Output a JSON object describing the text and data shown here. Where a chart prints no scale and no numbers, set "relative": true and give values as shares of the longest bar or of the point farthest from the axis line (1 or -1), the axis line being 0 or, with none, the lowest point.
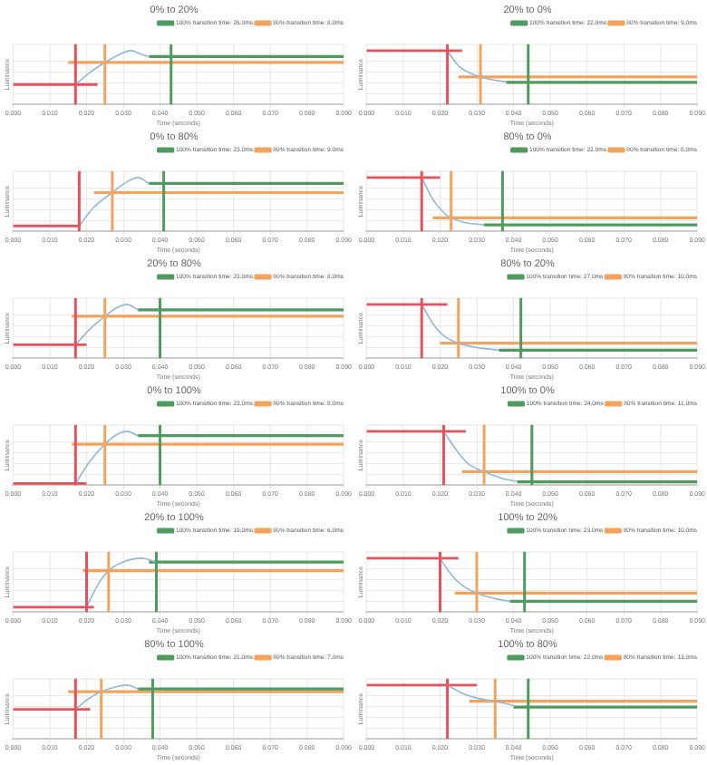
{
  "chart_data": [
    {
      "type": "line",
      "title": "0% to 20%",
      "xlabel": "Time (seconds)",
      "ylabel": "Luminance",
      "relative": true,
      "xlim": [
        0,
        0.09
      ],
      "xticks": [
        {
          "value": 0,
          "label": "0.000"
        },
        {
          "value": 0.01,
          "label": "0.010"
        },
        {
          "value": 0.02,
          "label": "0.020"
        },
        {
          "value": 0.03,
          "label": "0.030"
        },
        {
          "value": 0.04,
          "label": "0.040"
        },
        {
          "value": 0.05,
          "label": "0.050"
        },
        {
          "value": 0.06,
          "label": "0.060"
        },
        {
          "value": 0.07,
          "label": "0.070"
        },
        {
          "value": 0.08,
          "label": "0.080"
        },
        {
          "value": 0.09,
          "label": "0.090"
        }
      ],
      "grid": true,
      "legend": "top right",
      "tick_labels": "x",
      "marker": "none",
      "series": [
        {
          "color": "#8fb8de",
          "x": [
            0.017,
            0.021,
            0.025,
            0.029,
            0.032,
            0.035,
            0.037
          ],
          "values": [
            0.37,
            0.6,
            0.78,
            0.93,
            1,
            0.93,
            0.89
          ]
        },
        {
          "color": "#e8505b",
          "x": [
            0,
            0.023
          ],
          "values": [
            0.37,
            0.37
          ]
        },
        {
          "name": "100% transition time: 26.0ms",
          "color": "#4e9a5f",
          "x": [
            0.037,
            0.09
          ],
          "values": [
            0.89,
            0.89
          ]
        },
        {
          "name": "80% transition time: 8.0ms",
          "color": "#f5a35c",
          "x": [
            0.015,
            0.09
          ],
          "values": [
            0.78,
            0.78
          ]
        }
      ],
      "ref_lines": [
        {
          "axis": "x",
          "value": 0.017,
          "color": "#e8505b"
        },
        {
          "axis": "x",
          "value": 0.025,
          "color": "#f5a35c"
        },
        {
          "axis": "x",
          "value": 0.043,
          "color": "#4e9a5f"
        }
      ]
    },
    {
      "type": "line",
      "title": "20% to 0%",
      "xlabel": "Time (seconds)",
      "ylabel": "Luminance",
      "relative": true,
      "xlim": [
        0,
        0.09
      ],
      "xticks": [
        {
          "value": 0,
          "label": "0.000"
        },
        {
          "value": 0.01,
          "label": "0.010"
        },
        {
          "value": 0.02,
          "label": "0.020"
        },
        {
          "value": 0.03,
          "label": "0.030"
        },
        {
          "value": 0.04,
          "label": "0.040"
        },
        {
          "value": 0.05,
          "label": "0.050"
        },
        {
          "value": 0.06,
          "label": "0.060"
        },
        {
          "value": 0.07,
          "label": "0.070"
        },
        {
          "value": 0.08,
          "label": "0.080"
        },
        {
          "value": 0.09,
          "label": "0.090"
        }
      ],
      "grid": true,
      "legend": "top right",
      "tick_labels": "x",
      "marker": "none",
      "series": [
        {
          "color": "#8fb8de",
          "x": [
            0.022,
            0.025,
            0.028,
            0.031,
            0.035,
            0.038
          ],
          "values": [
            1,
            0.72,
            0.59,
            0.51,
            0.45,
            0.42
          ]
        },
        {
          "color": "#e8505b",
          "x": [
            0,
            0.026
          ],
          "values": [
            1,
            1
          ]
        },
        {
          "name": "100% transition time: 22.0ms",
          "color": "#4e9a5f",
          "x": [
            0.038,
            0.09
          ],
          "values": [
            0.41,
            0.41
          ]
        },
        {
          "name": "80% transition time: 9.0ms",
          "color": "#f5a35c",
          "x": [
            0.025,
            0.09
          ],
          "values": [
            0.51,
            0.51
          ]
        }
      ],
      "ref_lines": [
        {
          "axis": "x",
          "value": 0.022,
          "color": "#e8505b"
        },
        {
          "axis": "x",
          "value": 0.031,
          "color": "#f5a35c"
        },
        {
          "axis": "x",
          "value": 0.044,
          "color": "#4e9a5f"
        }
      ]
    },
    {
      "type": "line",
      "title": "0% to 80%",
      "xlabel": "Time (seconds)",
      "ylabel": "Luminance",
      "relative": true,
      "xlim": [
        0,
        0.09
      ],
      "xticks": [
        {
          "value": 0,
          "label": "0.000"
        },
        {
          "value": 0.01,
          "label": "0.010"
        },
        {
          "value": 0.02,
          "label": "0.020"
        },
        {
          "value": 0.03,
          "label": "0.030"
        },
        {
          "value": 0.04,
          "label": "0.040"
        },
        {
          "value": 0.05,
          "label": "0.050"
        },
        {
          "value": 0.06,
          "label": "0.060"
        },
        {
          "value": 0.07,
          "label": "0.070"
        },
        {
          "value": 0.08,
          "label": "0.080"
        },
        {
          "value": 0.09,
          "label": "0.090"
        }
      ],
      "grid": true,
      "legend": "top right",
      "tick_labels": "x",
      "marker": "none",
      "series": [
        {
          "color": "#8fb8de",
          "x": [
            0.018,
            0.022,
            0.027,
            0.031,
            0.034,
            0.037
          ],
          "values": [
            0.1,
            0.45,
            0.72,
            0.92,
            1,
            0.89
          ]
        },
        {
          "color": "#e8505b",
          "x": [
            0,
            0.018
          ],
          "values": [
            0.1,
            0.1
          ]
        },
        {
          "name": "100% transition time: 23.0ms",
          "color": "#4e9a5f",
          "x": [
            0.037,
            0.09
          ],
          "values": [
            0.89,
            0.89
          ]
        },
        {
          "name": "80% transition time: 9.0ms",
          "color": "#f5a35c",
          "x": [
            0.022,
            0.09
          ],
          "values": [
            0.72,
            0.72
          ]
        }
      ],
      "ref_lines": [
        {
          "axis": "x",
          "value": 0.018,
          "color": "#e8505b"
        },
        {
          "axis": "x",
          "value": 0.027,
          "color": "#f5a35c"
        },
        {
          "axis": "x",
          "value": 0.041,
          "color": "#4e9a5f"
        }
      ]
    },
    {
      "type": "line",
      "title": "80% to 0%",
      "xlabel": "Time (seconds)",
      "ylabel": "Luminance",
      "relative": true,
      "xlim": [
        0,
        0.09
      ],
      "xticks": [
        {
          "value": 0,
          "label": "0.000"
        },
        {
          "value": 0.01,
          "label": "0.010"
        },
        {
          "value": 0.02,
          "label": "0.020"
        },
        {
          "value": 0.03,
          "label": "0.030"
        },
        {
          "value": 0.04,
          "label": "0.040"
        },
        {
          "value": 0.05,
          "label": "0.050"
        },
        {
          "value": 0.06,
          "label": "0.060"
        },
        {
          "value": 0.07,
          "label": "0.070"
        },
        {
          "value": 0.08,
          "label": "0.080"
        },
        {
          "value": 0.09,
          "label": "0.090"
        }
      ],
      "grid": true,
      "legend": "top right",
      "tick_labels": "x",
      "marker": "none",
      "series": [
        {
          "color": "#8fb8de",
          "x": [
            0.015,
            0.018,
            0.021,
            0.023,
            0.027,
            0.032
          ],
          "values": [
            1,
            0.6,
            0.35,
            0.25,
            0.16,
            0.12
          ]
        },
        {
          "color": "#e8505b",
          "x": [
            0,
            0.02
          ],
          "values": [
            1,
            1
          ]
        },
        {
          "name": "100% transition time: 22.0ms",
          "color": "#4e9a5f",
          "x": [
            0.032,
            0.09
          ],
          "values": [
            0.12,
            0.12
          ]
        },
        {
          "name": "80% transition time: 8.0ms",
          "color": "#f5a35c",
          "x": [
            0.018,
            0.09
          ],
          "values": [
            0.25,
            0.25
          ]
        }
      ],
      "ref_lines": [
        {
          "axis": "x",
          "value": 0.015,
          "color": "#e8505b"
        },
        {
          "axis": "x",
          "value": 0.023,
          "color": "#f5a35c"
        },
        {
          "axis": "x",
          "value": 0.037,
          "color": "#4e9a5f"
        }
      ]
    },
    {
      "type": "line",
      "title": "20% to 80%",
      "xlabel": "Time (seconds)",
      "ylabel": "Luminance",
      "relative": true,
      "xlim": [
        0,
        0.09
      ],
      "xticks": [
        {
          "value": 0,
          "label": "0.000"
        },
        {
          "value": 0.01,
          "label": "0.010"
        },
        {
          "value": 0.02,
          "label": "0.020"
        },
        {
          "value": 0.03,
          "label": "0.030"
        },
        {
          "value": 0.04,
          "label": "0.040"
        },
        {
          "value": 0.05,
          "label": "0.050"
        },
        {
          "value": 0.06,
          "label": "0.060"
        },
        {
          "value": 0.07,
          "label": "0.070"
        },
        {
          "value": 0.08,
          "label": "0.080"
        },
        {
          "value": 0.09,
          "label": "0.090"
        }
      ],
      "grid": true,
      "legend": "top right",
      "tick_labels": "x",
      "marker": "none",
      "series": [
        {
          "color": "#8fb8de",
          "x": [
            0.017,
            0.021,
            0.025,
            0.028,
            0.031,
            0.034
          ],
          "values": [
            0.25,
            0.55,
            0.78,
            0.93,
            1,
            0.9
          ]
        },
        {
          "color": "#e8505b",
          "x": [
            0,
            0.02
          ],
          "values": [
            0.25,
            0.25
          ]
        },
        {
          "name": "100% transition time: 23.0ms",
          "color": "#4e9a5f",
          "x": [
            0.034,
            0.09
          ],
          "values": [
            0.9,
            0.9
          ]
        },
        {
          "name": "80% transition time: 8.0ms",
          "color": "#f5a35c",
          "x": [
            0.016,
            0.09
          ],
          "values": [
            0.78,
            0.78
          ]
        }
      ],
      "ref_lines": [
        {
          "axis": "x",
          "value": 0.017,
          "color": "#e8505b"
        },
        {
          "axis": "x",
          "value": 0.025,
          "color": "#f5a35c"
        },
        {
          "axis": "x",
          "value": 0.04,
          "color": "#4e9a5f"
        }
      ]
    },
    {
      "type": "line",
      "title": "80% to 20%",
      "xlabel": "Time (seconds)",
      "ylabel": "Luminance",
      "relative": true,
      "xlim": [
        0,
        0.09
      ],
      "xticks": [
        {
          "value": 0,
          "label": "0.000"
        },
        {
          "value": 0.01,
          "label": "0.010"
        },
        {
          "value": 0.02,
          "label": "0.020"
        },
        {
          "value": 0.03,
          "label": "0.030"
        },
        {
          "value": 0.04,
          "label": "0.040"
        },
        {
          "value": 0.05,
          "label": "0.050"
        },
        {
          "value": 0.06,
          "label": "0.060"
        },
        {
          "value": 0.07,
          "label": "0.070"
        },
        {
          "value": 0.08,
          "label": "0.080"
        },
        {
          "value": 0.09,
          "label": "0.090"
        }
      ],
      "grid": true,
      "legend": "top right",
      "tick_labels": "x",
      "marker": "none",
      "series": [
        {
          "color": "#8fb8de",
          "x": [
            0.015,
            0.018,
            0.021,
            0.025,
            0.03,
            0.036
          ],
          "values": [
            1,
            0.65,
            0.42,
            0.28,
            0.2,
            0.15
          ]
        },
        {
          "color": "#e8505b",
          "x": [
            0,
            0.022
          ],
          "values": [
            1,
            1
          ]
        },
        {
          "name": "100% transition time: 27.0ms",
          "color": "#4e9a5f",
          "x": [
            0.036,
            0.09
          ],
          "values": [
            0.15,
            0.15
          ]
        },
        {
          "name": "80% transition time: 10.0ms",
          "color": "#f5a35c",
          "x": [
            0.02,
            0.09
          ],
          "values": [
            0.28,
            0.28
          ]
        }
      ],
      "ref_lines": [
        {
          "axis": "x",
          "value": 0.015,
          "color": "#e8505b"
        },
        {
          "axis": "x",
          "value": 0.025,
          "color": "#f5a35c"
        },
        {
          "axis": "x",
          "value": 0.042,
          "color": "#4e9a5f"
        }
      ]
    },
    {
      "type": "line",
      "title": "0% to 100%",
      "xlabel": "Time (seconds)",
      "ylabel": "Luminance",
      "relative": true,
      "xlim": [
        0,
        0.09
      ],
      "xticks": [
        {
          "value": 0,
          "label": "0.000"
        },
        {
          "value": 0.01,
          "label": "0.010"
        },
        {
          "value": 0.02,
          "label": "0.020"
        },
        {
          "value": 0.03,
          "label": "0.030"
        },
        {
          "value": 0.04,
          "label": "0.040"
        },
        {
          "value": 0.05,
          "label": "0.050"
        },
        {
          "value": 0.06,
          "label": "0.060"
        },
        {
          "value": 0.07,
          "label": "0.070"
        },
        {
          "value": 0.08,
          "label": "0.080"
        },
        {
          "value": 0.09,
          "label": "0.090"
        }
      ],
      "grid": true,
      "legend": "top right",
      "tick_labels": "x",
      "marker": "none",
      "series": [
        {
          "color": "#8fb8de",
          "x": [
            0.017,
            0.021,
            0.025,
            0.028,
            0.031,
            0.034
          ],
          "values": [
            0.03,
            0.45,
            0.76,
            0.93,
            1,
            0.92
          ]
        },
        {
          "color": "#e8505b",
          "x": [
            0,
            0.02
          ],
          "values": [
            0.03,
            0.03
          ]
        },
        {
          "name": "100% transition time: 23.0ms",
          "color": "#4e9a5f",
          "x": [
            0.034,
            0.09
          ],
          "values": [
            0.92,
            0.92
          ]
        },
        {
          "name": "80% transition time: 8.0ms",
          "color": "#f5a35c",
          "x": [
            0.016,
            0.09
          ],
          "values": [
            0.76,
            0.76
          ]
        }
      ],
      "ref_lines": [
        {
          "axis": "x",
          "value": 0.017,
          "color": "#e8505b"
        },
        {
          "axis": "x",
          "value": 0.025,
          "color": "#f5a35c"
        },
        {
          "axis": "x",
          "value": 0.04,
          "color": "#4e9a5f"
        }
      ]
    },
    {
      "type": "line",
      "title": "100% to 0%",
      "xlabel": "Time (seconds)",
      "ylabel": "Luminance",
      "relative": true,
      "xlim": [
        0,
        0.09
      ],
      "xticks": [
        {
          "value": 0,
          "label": "0.000"
        },
        {
          "value": 0.01,
          "label": "0.010"
        },
        {
          "value": 0.02,
          "label": "0.020"
        },
        {
          "value": 0.03,
          "label": "0.030"
        },
        {
          "value": 0.04,
          "label": "0.040"
        },
        {
          "value": 0.05,
          "label": "0.050"
        },
        {
          "value": 0.06,
          "label": "0.060"
        },
        {
          "value": 0.07,
          "label": "0.070"
        },
        {
          "value": 0.08,
          "label": "0.080"
        },
        {
          "value": 0.09,
          "label": "0.090"
        }
      ],
      "grid": true,
      "legend": "top right",
      "tick_labels": "x",
      "marker": "none",
      "series": [
        {
          "color": "#8fb8de",
          "x": [
            0.021,
            0.025,
            0.028,
            0.032,
            0.037,
            0.041
          ],
          "values": [
            1,
            0.6,
            0.38,
            0.25,
            0.12,
            0.07
          ]
        },
        {
          "color": "#e8505b",
          "x": [
            0,
            0.027
          ],
          "values": [
            1,
            1
          ]
        },
        {
          "name": "100% transition time: 24.0ms",
          "color": "#4e9a5f",
          "x": [
            0.041,
            0.09
          ],
          "values": [
            0.06,
            0.06
          ]
        },
        {
          "name": "80% transition time: 11.0ms",
          "color": "#f5a35c",
          "x": [
            0.026,
            0.09
          ],
          "values": [
            0.25,
            0.25
          ]
        }
      ],
      "ref_lines": [
        {
          "axis": "x",
          "value": 0.021,
          "color": "#e8505b"
        },
        {
          "axis": "x",
          "value": 0.032,
          "color": "#f5a35c"
        },
        {
          "axis": "x",
          "value": 0.045,
          "color": "#4e9a5f"
        }
      ]
    },
    {
      "type": "line",
      "title": "20% to 100%",
      "xlabel": "Time (seconds)",
      "ylabel": "Luminance",
      "relative": true,
      "xlim": [
        0,
        0.09
      ],
      "xticks": [
        {
          "value": 0,
          "label": "0.000"
        },
        {
          "value": 0.01,
          "label": "0.010"
        },
        {
          "value": 0.02,
          "label": "0.020"
        },
        {
          "value": 0.03,
          "label": "0.030"
        },
        {
          "value": 0.04,
          "label": "0.040"
        },
        {
          "value": 0.05,
          "label": "0.050"
        },
        {
          "value": 0.06,
          "label": "0.060"
        },
        {
          "value": 0.07,
          "label": "0.070"
        },
        {
          "value": 0.08,
          "label": "0.080"
        },
        {
          "value": 0.09,
          "label": "0.090"
        }
      ],
      "grid": true,
      "legend": "top right",
      "tick_labels": "x",
      "marker": "none",
      "series": [
        {
          "color": "#8fb8de",
          "x": [
            0.02,
            0.023,
            0.026,
            0.03,
            0.035,
            0.039
          ],
          "values": [
            0.09,
            0.5,
            0.77,
            0.93,
            1,
            0.93
          ]
        },
        {
          "color": "#e8505b",
          "x": [
            0,
            0.022
          ],
          "values": [
            0.09,
            0.09
          ]
        },
        {
          "name": "100% transition time: 19.0ms",
          "color": "#4e9a5f",
          "x": [
            0.037,
            0.09
          ],
          "values": [
            0.93,
            0.93
          ]
        },
        {
          "name": "80% transition time: 6.0ms",
          "color": "#f5a35c",
          "x": [
            0.019,
            0.09
          ],
          "values": [
            0.77,
            0.77
          ]
        }
      ],
      "ref_lines": [
        {
          "axis": "x",
          "value": 0.02,
          "color": "#e8505b"
        },
        {
          "axis": "x",
          "value": 0.026,
          "color": "#f5a35c"
        },
        {
          "axis": "x",
          "value": 0.039,
          "color": "#4e9a5f"
        }
      ]
    },
    {
      "type": "line",
      "title": "100% to 20%",
      "xlabel": "Time (seconds)",
      "ylabel": "Luminance",
      "relative": true,
      "xlim": [
        0,
        0.09
      ],
      "xticks": [
        {
          "value": 0,
          "label": "0.000"
        },
        {
          "value": 0.01,
          "label": "0.010"
        },
        {
          "value": 0.02,
          "label": "0.020"
        },
        {
          "value": 0.03,
          "label": "0.030"
        },
        {
          "value": 0.04,
          "label": "0.040"
        },
        {
          "value": 0.05,
          "label": "0.050"
        },
        {
          "value": 0.06,
          "label": "0.060"
        },
        {
          "value": 0.07,
          "label": "0.070"
        },
        {
          "value": 0.08,
          "label": "0.080"
        },
        {
          "value": 0.09,
          "label": "0.090"
        }
      ],
      "grid": true,
      "legend": "top right",
      "tick_labels": "x",
      "marker": "none",
      "series": [
        {
          "color": "#8fb8de",
          "x": [
            0.02,
            0.023,
            0.026,
            0.03,
            0.035,
            0.039
          ],
          "values": [
            1,
            0.7,
            0.5,
            0.35,
            0.25,
            0.2
          ]
        },
        {
          "color": "#e8505b",
          "x": [
            0,
            0.025
          ],
          "values": [
            1,
            1
          ]
        },
        {
          "name": "100% transition time: 23.0ms",
          "color": "#4e9a5f",
          "x": [
            0.039,
            0.09
          ],
          "values": [
            0.2,
            0.2
          ]
        },
        {
          "name": "80% transition time: 10.0ms",
          "color": "#f5a35c",
          "x": [
            0.024,
            0.09
          ],
          "values": [
            0.35,
            0.35
          ]
        }
      ],
      "ref_lines": [
        {
          "axis": "x",
          "value": 0.02,
          "color": "#e8505b"
        },
        {
          "axis": "x",
          "value": 0.03,
          "color": "#f5a35c"
        },
        {
          "axis": "x",
          "value": 0.043,
          "color": "#4e9a5f"
        }
      ]
    },
    {
      "type": "line",
      "title": "80% to 100%",
      "xlabel": "Time (seconds)",
      "ylabel": "Luminance",
      "relative": true,
      "xlim": [
        0,
        0.09
      ],
      "xticks": [
        {
          "value": 0,
          "label": "0.000"
        },
        {
          "value": 0.01,
          "label": "0.010"
        },
        {
          "value": 0.02,
          "label": "0.020"
        },
        {
          "value": 0.03,
          "label": "0.030"
        },
        {
          "value": 0.04,
          "label": "0.040"
        },
        {
          "value": 0.05,
          "label": "0.050"
        },
        {
          "value": 0.06,
          "label": "0.060"
        },
        {
          "value": 0.07,
          "label": "0.070"
        },
        {
          "value": 0.08,
          "label": "0.080"
        },
        {
          "value": 0.09,
          "label": "0.090"
        }
      ],
      "grid": true,
      "legend": "top right",
      "tick_labels": "x",
      "marker": "none",
      "series": [
        {
          "color": "#8fb8de",
          "x": [
            0.017,
            0.02,
            0.024,
            0.028,
            0.031,
            0.034
          ],
          "values": [
            0.55,
            0.72,
            0.88,
            0.97,
            1,
            0.93
          ]
        },
        {
          "color": "#e8505b",
          "x": [
            0,
            0.021
          ],
          "values": [
            0.55,
            0.55
          ]
        },
        {
          "name": "100% transition time: 21.0ms",
          "color": "#4e9a5f",
          "x": [
            0.034,
            0.09
          ],
          "values": [
            0.93,
            0.93
          ]
        },
        {
          "name": "80% transition time: 7.0ms",
          "color": "#f5a35c",
          "x": [
            0.015,
            0.09
          ],
          "values": [
            0.88,
            0.88
          ]
        }
      ],
      "ref_lines": [
        {
          "axis": "x",
          "value": 0.017,
          "color": "#e8505b"
        },
        {
          "axis": "x",
          "value": 0.024,
          "color": "#f5a35c"
        },
        {
          "axis": "x",
          "value": 0.038,
          "color": "#4e9a5f"
        }
      ]
    },
    {
      "type": "line",
      "title": "100% to 80%",
      "xlabel": "Time (seconds)",
      "ylabel": "Luminance",
      "relative": true,
      "xlim": [
        0,
        0.09
      ],
      "xticks": [
        {
          "value": 0,
          "label": "0.000"
        },
        {
          "value": 0.01,
          "label": "0.010"
        },
        {
          "value": 0.02,
          "label": "0.020"
        },
        {
          "value": 0.03,
          "label": "0.030"
        },
        {
          "value": 0.04,
          "label": "0.040"
        },
        {
          "value": 0.05,
          "label": "0.050"
        },
        {
          "value": 0.06,
          "label": "0.060"
        },
        {
          "value": 0.07,
          "label": "0.070"
        },
        {
          "value": 0.08,
          "label": "0.080"
        },
        {
          "value": 0.09,
          "label": "0.090"
        }
      ],
      "grid": true,
      "legend": "top right",
      "tick_labels": "x",
      "marker": "none",
      "series": [
        {
          "color": "#8fb8de",
          "x": [
            0.022,
            0.026,
            0.03,
            0.035,
            0.04
          ],
          "values": [
            1,
            0.85,
            0.76,
            0.7,
            0.62
          ]
        },
        {
          "color": "#e8505b",
          "x": [
            0,
            0.03
          ],
          "values": [
            1,
            1
          ]
        },
        {
          "name": "100% transition time: 22.0ms",
          "color": "#4e9a5f",
          "x": [
            0.04,
            0.09
          ],
          "values": [
            0.59,
            0.59
          ]
        },
        {
          "name": "80% transition time: 13.0ms",
          "color": "#f5a35c",
          "x": [
            0.028,
            0.09
          ],
          "values": [
            0.7,
            0.7
          ]
        }
      ],
      "ref_lines": [
        {
          "axis": "x",
          "value": 0.022,
          "color": "#e8505b"
        },
        {
          "axis": "x",
          "value": 0.035,
          "color": "#f5a35c"
        },
        {
          "axis": "x",
          "value": 0.044,
          "color": "#4e9a5f"
        }
      ]
    }
  ]
}
